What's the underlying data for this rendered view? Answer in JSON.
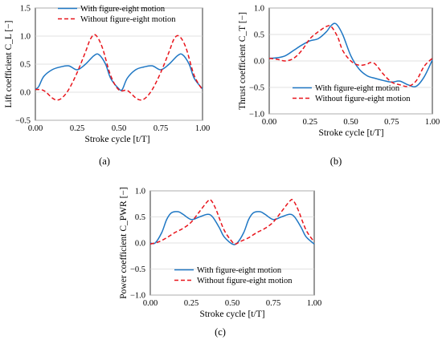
{
  "colors": {
    "with": "#1f77c4",
    "without": "#e8141b"
  },
  "chart_data": [
    {
      "type": "line",
      "panel_label": "(a)",
      "xlabel": "Stroke cycle [t/T]",
      "ylabel": "Lift coefficient C_L [−]",
      "xlim": [
        0,
        1
      ],
      "ylim": [
        -0.5,
        1.5
      ],
      "xticks": [
        "0.00",
        "0.25",
        "0.50",
        "0.75",
        "1.00"
      ],
      "yticks": [
        "−0.5",
        "0.0",
        "0.5",
        "1.0",
        "1.5"
      ],
      "legend_position": "top-right",
      "series": [
        {
          "name": "With figure-eight motion",
          "style": "solid",
          "x": [
            0.0,
            0.02,
            0.05,
            0.1,
            0.15,
            0.2,
            0.25,
            0.3,
            0.35,
            0.38,
            0.42,
            0.45,
            0.5,
            0.52,
            0.55,
            0.6,
            0.65,
            0.7,
            0.75,
            0.8,
            0.85,
            0.88,
            0.92,
            0.95,
            1.0
          ],
          "y": [
            0.05,
            0.1,
            0.28,
            0.4,
            0.45,
            0.47,
            0.4,
            0.5,
            0.65,
            0.67,
            0.5,
            0.25,
            0.06,
            0.05,
            0.25,
            0.4,
            0.45,
            0.47,
            0.4,
            0.5,
            0.65,
            0.67,
            0.5,
            0.25,
            0.06
          ]
        },
        {
          "name": "Without figure-eight motion",
          "style": "dashed",
          "x": [
            0.0,
            0.05,
            0.1,
            0.13,
            0.16,
            0.2,
            0.25,
            0.3,
            0.33,
            0.36,
            0.4,
            0.45,
            0.5,
            0.55,
            0.6,
            0.63,
            0.66,
            0.7,
            0.75,
            0.8,
            0.83,
            0.86,
            0.9,
            0.95,
            1.0
          ],
          "y": [
            0.05,
            0.03,
            -0.1,
            -0.14,
            -0.1,
            0.05,
            0.35,
            0.72,
            0.95,
            1.02,
            0.8,
            0.3,
            0.04,
            0.03,
            -0.1,
            -0.14,
            -0.1,
            0.05,
            0.35,
            0.72,
            0.95,
            1.0,
            0.8,
            0.3,
            0.04
          ]
        }
      ]
    },
    {
      "type": "line",
      "panel_label": "(b)",
      "xlabel": "Stroke cycle [t/T]",
      "ylabel": "Thrust coefficient C_T [−]",
      "xlim": [
        0,
        1
      ],
      "ylim": [
        -1.0,
        1.0
      ],
      "xticks": [
        "0.00",
        "0.25",
        "0.50",
        "0.75",
        "1.00"
      ],
      "yticks": [
        "−1.0",
        "−0.5",
        "0.0",
        "0.5",
        "1.0"
      ],
      "legend_position": "bottom-right",
      "series": [
        {
          "name": "With figure-eight motion",
          "style": "solid",
          "x": [
            0.0,
            0.05,
            0.1,
            0.15,
            0.2,
            0.25,
            0.3,
            0.35,
            0.38,
            0.41,
            0.45,
            0.5,
            0.55,
            0.6,
            0.65,
            0.7,
            0.75,
            0.8,
            0.85,
            0.9,
            0.95,
            1.0
          ],
          "y": [
            0.05,
            0.06,
            0.1,
            0.2,
            0.3,
            0.38,
            0.42,
            0.55,
            0.67,
            0.7,
            0.5,
            0.1,
            -0.15,
            -0.28,
            -0.33,
            -0.37,
            -0.4,
            -0.38,
            -0.45,
            -0.48,
            -0.3,
            0.02
          ]
        },
        {
          "name": "Without figure-eight motion",
          "style": "dashed",
          "x": [
            0.0,
            0.05,
            0.1,
            0.15,
            0.2,
            0.25,
            0.3,
            0.35,
            0.38,
            0.42,
            0.45,
            0.5,
            0.55,
            0.6,
            0.62,
            0.65,
            0.7,
            0.75,
            0.8,
            0.85,
            0.9,
            0.95,
            1.0
          ],
          "y": [
            0.05,
            0.03,
            0.0,
            0.05,
            0.2,
            0.42,
            0.55,
            0.65,
            0.65,
            0.45,
            0.2,
            0.0,
            -0.08,
            -0.06,
            -0.03,
            -0.06,
            -0.25,
            -0.4,
            -0.45,
            -0.48,
            -0.38,
            -0.1,
            0.05
          ]
        }
      ]
    },
    {
      "type": "line",
      "panel_label": "(c)",
      "xlabel": "Stroke cycle [t/T]",
      "ylabel": "Power coefficient C_PWR [−]",
      "xlim": [
        0,
        1
      ],
      "ylim": [
        -1.0,
        1.0
      ],
      "xticks": [
        "0.00",
        "0.25",
        "0.50",
        "0.75",
        "1.00"
      ],
      "yticks": [
        "−1.0",
        "−0.5",
        "0.0",
        "0.5",
        "1.0"
      ],
      "legend_position": "bottom-right",
      "series": [
        {
          "name": "With figure-eight motion",
          "style": "solid",
          "x": [
            0.0,
            0.03,
            0.07,
            0.1,
            0.13,
            0.17,
            0.2,
            0.25,
            0.3,
            0.35,
            0.38,
            0.42,
            0.45,
            0.5,
            0.53,
            0.57,
            0.6,
            0.63,
            0.67,
            0.7,
            0.75,
            0.8,
            0.85,
            0.88,
            0.92,
            0.95,
            1.0
          ],
          "y": [
            0.0,
            0.0,
            0.2,
            0.45,
            0.58,
            0.6,
            0.55,
            0.45,
            0.5,
            0.55,
            0.5,
            0.3,
            0.12,
            -0.02,
            0.0,
            0.2,
            0.45,
            0.58,
            0.6,
            0.55,
            0.45,
            0.5,
            0.55,
            0.5,
            0.3,
            0.12,
            -0.02
          ]
        },
        {
          "name": "Without figure-eight motion",
          "style": "dashed",
          "x": [
            0.0,
            0.05,
            0.1,
            0.15,
            0.2,
            0.25,
            0.3,
            0.35,
            0.37,
            0.4,
            0.45,
            0.5,
            0.52,
            0.55,
            0.6,
            0.65,
            0.7,
            0.75,
            0.8,
            0.85,
            0.87,
            0.9,
            0.95,
            1.0
          ],
          "y": [
            -0.02,
            0.02,
            0.1,
            0.2,
            0.28,
            0.4,
            0.6,
            0.8,
            0.82,
            0.65,
            0.25,
            0.02,
            -0.02,
            0.03,
            0.1,
            0.2,
            0.28,
            0.4,
            0.6,
            0.8,
            0.82,
            0.65,
            0.25,
            0.02
          ]
        }
      ]
    }
  ]
}
